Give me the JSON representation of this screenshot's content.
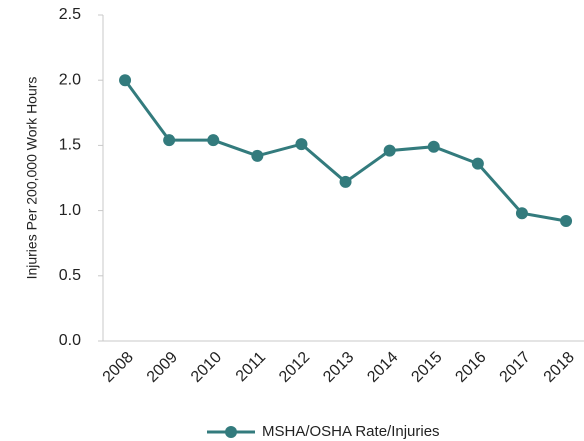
{
  "chart_data": {
    "type": "line",
    "y_label": "Injuries Per 200,000 Work Hours",
    "categories": [
      "2008",
      "2009",
      "2010",
      "2011",
      "2012",
      "2013",
      "2014",
      "2015",
      "2016",
      "2017",
      "2018"
    ],
    "series": [
      {
        "name": "MSHA/OSHA Rate/Injuries",
        "color": "#337b7d",
        "values": [
          2.0,
          1.54,
          1.54,
          1.42,
          1.51,
          1.22,
          1.46,
          1.49,
          1.36,
          0.98,
          0.92
        ]
      }
    ],
    "ylim": [
      0,
      2.5
    ],
    "yticks": [
      {
        "value": 0,
        "label": "0.0"
      },
      0.5,
      {
        "value": 1,
        "label": "1.0"
      },
      1.5,
      {
        "value": 2,
        "label": "2.0"
      },
      2.5
    ],
    "grid": false,
    "legend": "bottom"
  }
}
